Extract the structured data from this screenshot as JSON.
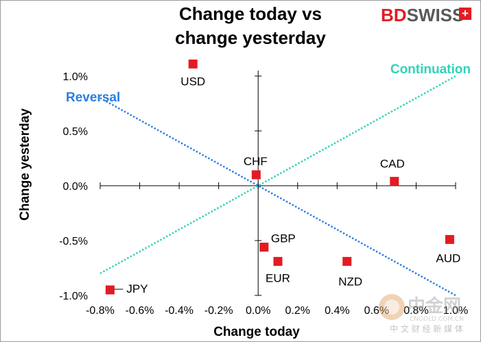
{
  "chart_data": {
    "type": "scatter",
    "title_line1": "Change today vs",
    "title_line2": "change yesterday",
    "xlabel": "Change today",
    "ylabel": "Change yesterday",
    "xlim": [
      -0.8,
      1.0
    ],
    "ylim": [
      -1.0,
      1.0
    ],
    "xticks": [
      -0.8,
      -0.6,
      -0.4,
      -0.2,
      0.0,
      0.2,
      0.4,
      0.6,
      0.8,
      1.0
    ],
    "xtick_labels": [
      "-0.8%",
      "-0.6%",
      "-0.4%",
      "-0.2%",
      "0.0%",
      "0.2%",
      "0.4%",
      "0.6%",
      "0.8%",
      "1.0%"
    ],
    "yticks": [
      1.0,
      0.5,
      0.0,
      -0.5,
      -1.0
    ],
    "ytick_labels": [
      "1.0%",
      "0.5%",
      "0.0%",
      "-0.5%",
      "-1.0%"
    ],
    "points": [
      {
        "label": "USD",
        "x": -0.33,
        "y": 1.11
      },
      {
        "label": "CHF",
        "x": -0.01,
        "y": 0.1
      },
      {
        "label": "CAD",
        "x": 0.69,
        "y": 0.04
      },
      {
        "label": "GBP",
        "x": 0.03,
        "y": -0.56
      },
      {
        "label": "EUR",
        "x": 0.1,
        "y": -0.69
      },
      {
        "label": "NZD",
        "x": 0.45,
        "y": -0.69
      },
      {
        "label": "AUD",
        "x": 0.97,
        "y": -0.49
      },
      {
        "label": "JPY",
        "x": -0.75,
        "y": -0.95
      }
    ],
    "guides": [
      {
        "name": "Reversal",
        "x": [
          -0.8,
          1.0
        ],
        "y": [
          0.8,
          -1.0
        ],
        "color": "#2b7ee0"
      },
      {
        "name": "Continuation",
        "x": [
          -0.8,
          1.0
        ],
        "y": [
          -0.8,
          1.0
        ],
        "color": "#2fd3b9"
      }
    ],
    "marker_color": "#e31b23"
  },
  "brand": {
    "bd": "BD",
    "swiss": "SWISS",
    "plus": "+",
    "red": "#e31b23",
    "grey": "#595959"
  },
  "watermark": {
    "name": "中金网",
    "url": "CNGOLD.COM.CN",
    "tagline": "中 文 财 经 新 媒 体"
  }
}
